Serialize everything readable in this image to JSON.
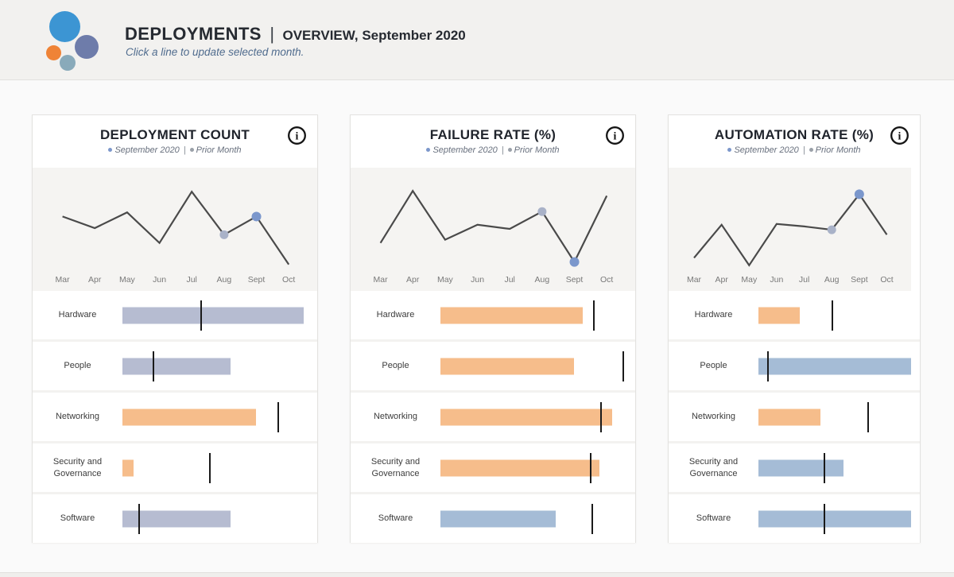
{
  "header": {
    "title_primary": "DEPLOYMENTS",
    "title_separator": "|",
    "title_secondary": "OVERVIEW, September 2020",
    "subtitle": "Click a line to update selected month.",
    "logo_colors": {
      "large_blue": "#3c95d3",
      "purple": "#6e7caa",
      "orange": "#ef8336",
      "teal": "#89aaba"
    }
  },
  "legend": {
    "selected_label": "September 2020",
    "separator": "|",
    "prior_label": "Prior Month",
    "selected_color": "#7c97cb",
    "prior_color": "#9aa0a8"
  },
  "months": [
    "Mar",
    "Apr",
    "May",
    "Jun",
    "Jul",
    "Aug",
    "Sept",
    "Oct"
  ],
  "colors": {
    "line": "#4a4a4a",
    "marker_selected": "#7b97cc",
    "marker_prior": "#a9b2c8",
    "tick": "#1a1a1a",
    "periwinkle": "#b6bcd1",
    "orange": "#f6bd8b",
    "steel": "#a5bcd6"
  },
  "chart_data": [
    {
      "title": "DEPLOYMENT COUNT",
      "trend": {
        "type": "line",
        "x": [
          "Mar",
          "Apr",
          "May",
          "Jun",
          "Jul",
          "Aug",
          "Sept",
          "Oct"
        ],
        "values_relative_0_100": [
          64,
          50,
          69,
          32,
          94,
          42,
          64,
          6
        ],
        "prior_marker_month": "Aug",
        "selected_marker_month": "Sept",
        "note": "no numeric axis shown; values estimated on relative 0-100 scale",
        "ylim": [
          0,
          100
        ]
      },
      "bullets": {
        "type": "bar",
        "categories": [
          "Hardware",
          "People",
          "Networking",
          "Security and Governance",
          "Software"
        ],
        "bar_length_pct": [
          99,
          59,
          73,
          6,
          59
        ],
        "prior_tick_pct": [
          43,
          17,
          85,
          48,
          9
        ],
        "bar_color_keys": [
          "periwinkle",
          "periwinkle",
          "orange",
          "orange",
          "periwinkle"
        ]
      }
    },
    {
      "title": "FAILURE RATE (%)",
      "trend": {
        "type": "line",
        "x": [
          "Mar",
          "Apr",
          "May",
          "Jun",
          "Jul",
          "Aug",
          "Sept",
          "Oct"
        ],
        "values_relative_0_100": [
          32,
          95,
          36,
          54,
          49,
          70,
          9,
          89
        ],
        "prior_marker_month": "Aug",
        "selected_marker_month": "Sept",
        "note": "no numeric axis shown; values estimated on relative 0-100 scale",
        "ylim": [
          0,
          100
        ]
      },
      "bullets": {
        "type": "bar",
        "categories": [
          "Hardware",
          "People",
          "Networking",
          "Security and Governance",
          "Software"
        ],
        "bar_length_pct": [
          78,
          73,
          94,
          87,
          63
        ],
        "prior_tick_pct": [
          84,
          100,
          88,
          82,
          83
        ],
        "bar_color_keys": [
          "orange",
          "orange",
          "orange",
          "orange",
          "steel"
        ]
      }
    },
    {
      "title": "AUTOMATION RATE (%)",
      "trend": {
        "type": "line",
        "x": [
          "Mar",
          "Apr",
          "May",
          "Jun",
          "Jul",
          "Aug",
          "Sept",
          "Oct"
        ],
        "values_relative_0_100": [
          14,
          54,
          5,
          55,
          52,
          48,
          91,
          42
        ],
        "prior_marker_month": "Aug",
        "selected_marker_month": "Sept",
        "note": "no numeric axis shown; values estimated on relative 0-100 scale",
        "ylim": [
          0,
          100
        ]
      },
      "bullets": {
        "type": "bar",
        "categories": [
          "Hardware",
          "People",
          "Networking",
          "Security and Governance",
          "Software"
        ],
        "bar_length_pct": [
          27,
          99,
          40,
          55,
          99
        ],
        "prior_tick_pct": [
          48,
          6,
          71,
          43,
          43
        ],
        "bar_color_keys": [
          "orange",
          "steel",
          "orange",
          "steel",
          "steel"
        ]
      }
    }
  ]
}
